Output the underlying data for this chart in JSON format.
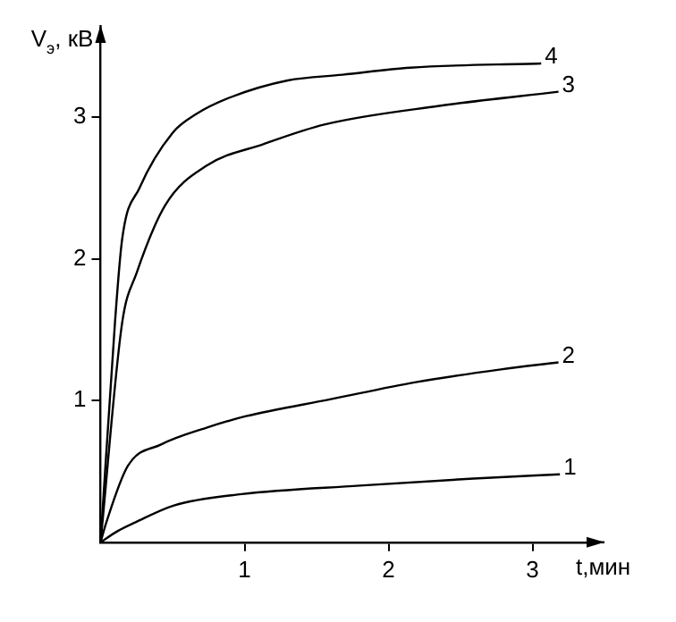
{
  "chart_data": {
    "type": "line",
    "xlabel": "t,мин",
    "ylabel": "V$_{э}$, кВ",
    "xlim": [
      0,
      3.4
    ],
    "ylim": [
      0,
      3.55
    ],
    "xticks": [
      1,
      2,
      3
    ],
    "yticks": [
      1,
      2,
      3
    ],
    "grid": false,
    "legend": false,
    "marker": "none",
    "line_style": "solid",
    "series": [
      {
        "name": "1",
        "color": "#000000",
        "x": [
          0,
          0.12,
          0.24,
          0.51,
          0.98,
          1.8,
          2.59,
          3.19
        ],
        "values": [
          0,
          0.08,
          0.14,
          0.26,
          0.34,
          0.4,
          0.45,
          0.48
        ]
      },
      {
        "name": "2",
        "color": "#000000",
        "x": [
          0,
          0.04,
          0.19,
          0.42,
          0.74,
          1.01,
          1.6,
          2.19,
          2.78,
          3.18
        ],
        "values": [
          0,
          0.14,
          0.54,
          0.69,
          0.81,
          0.89,
          1.01,
          1.13,
          1.22,
          1.27
        ]
      },
      {
        "name": "3",
        "color": "#000000",
        "x": [
          0,
          0.15,
          0.25,
          0.45,
          0.74,
          1.13,
          1.56,
          2.35,
          3.18
        ],
        "values": [
          0,
          1.55,
          1.9,
          2.38,
          2.66,
          2.81,
          2.95,
          3.08,
          3.18
        ]
      },
      {
        "name": "4",
        "color": "#000000",
        "x": [
          0,
          0.1,
          0.15,
          0.27,
          0.5,
          0.66,
          0.9,
          1.3,
          1.68,
          2.15,
          3.06
        ],
        "values": [
          0,
          1.55,
          2.14,
          2.5,
          2.89,
          3.02,
          3.14,
          3.26,
          3.3,
          3.35,
          3.38
        ]
      }
    ]
  }
}
